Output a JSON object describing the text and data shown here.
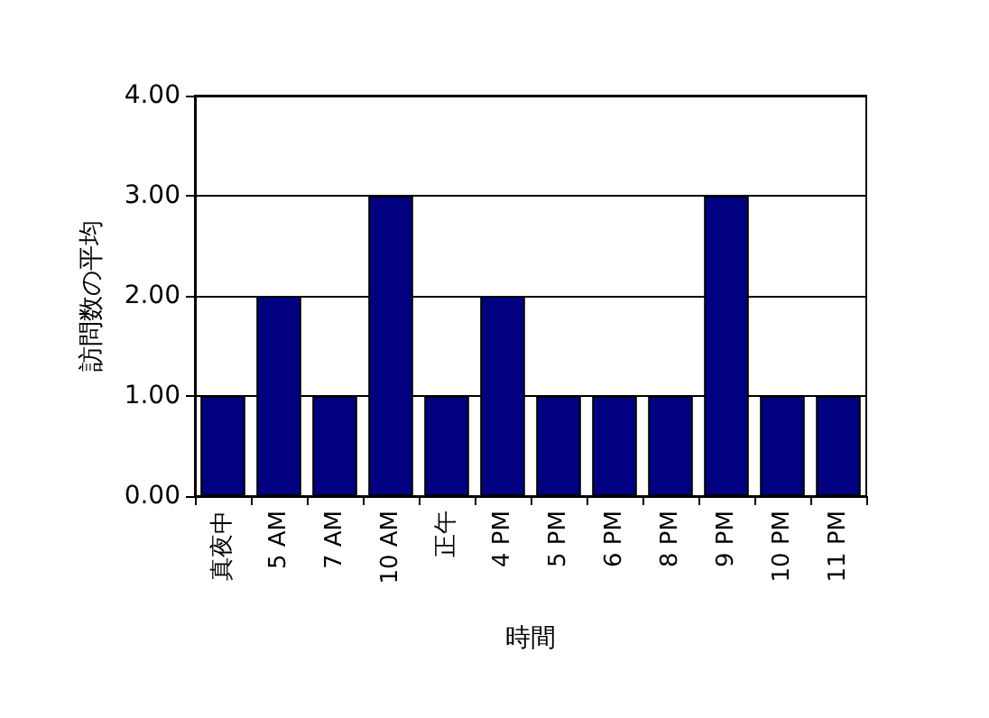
{
  "chart_data": {
    "type": "bar",
    "xlabel": "時間",
    "ylabel": "訪問数の平均",
    "categories": [
      "真夜中",
      "5 AM",
      "7 AM",
      "10 AM",
      "正午",
      "4 PM",
      "5 PM",
      "6 PM",
      "8 PM",
      "9 PM",
      "10 PM",
      "11 PM"
    ],
    "values": [
      1,
      2,
      1,
      3,
      1,
      2,
      1,
      1,
      1,
      3,
      1,
      1
    ],
    "color": "#000080",
    "ylim": [
      0,
      4
    ],
    "yticks": [
      {
        "value": 0,
        "label": "0.00"
      },
      {
        "value": 1,
        "label": "1.00"
      },
      {
        "value": 2,
        "label": "2.00"
      },
      {
        "value": 3,
        "label": "3.00"
      },
      {
        "value": 4,
        "label": "4.00"
      }
    ],
    "grid": "y"
  }
}
